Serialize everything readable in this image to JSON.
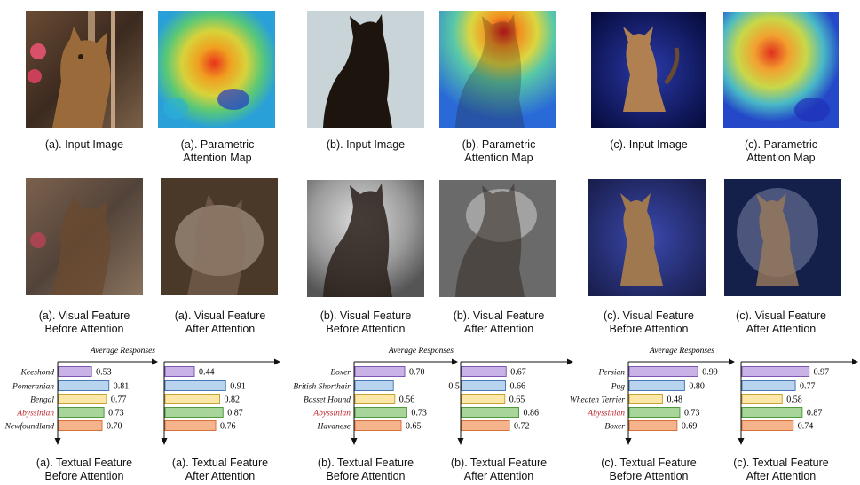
{
  "figure": {
    "columns": [
      {
        "input_caption": "(a). Input Image",
        "attn_caption": "(a). Parametric\nAttention Map",
        "vis_before_caption": "(a). Visual Feature\nBefore Attention",
        "vis_after_caption": "(a). Visual Feature\nAfter Attention",
        "txt_before_caption": "(a). Textual Feature\nBefore Attention",
        "txt_after_caption": "(a). Textual Feature\nAfter Attention"
      },
      {
        "input_caption": "(b). Input Image",
        "attn_caption": "(b). Parametric\nAttention Map",
        "vis_before_caption": "(b). Visual Feature\nBefore Attention",
        "vis_after_caption": "(b). Visual Feature\nAfter Attention",
        "txt_before_caption": "(b). Textual Feature\nBefore Attention",
        "txt_after_caption": "(b). Textual Feature\nAfter Attention"
      },
      {
        "input_caption": "(c). Input Image",
        "attn_caption": "(c). Parametric\nAttention Map",
        "vis_before_caption": "(c). Visual Feature\nBefore Attention",
        "vis_after_caption": "(c). Visual Feature\nAfter Attention",
        "txt_before_caption": "(c). Textual Feature\nBefore Attention",
        "txt_after_caption": "(c). Textual Feature\nAfter Attention"
      }
    ]
  },
  "chart_data": [
    {
      "type": "bar",
      "orientation": "horizontal",
      "annotation": "Average Responses",
      "categories": [
        "Keeshond",
        "Pomeranian",
        "Bengal",
        "Abyssinian",
        "Newfoundland"
      ],
      "highlight": "Abyssinian",
      "before": [
        0.53,
        0.81,
        0.77,
        0.73,
        0.7
      ],
      "after": [
        0.44,
        0.91,
        0.82,
        0.87,
        0.76
      ]
    },
    {
      "type": "bar",
      "orientation": "horizontal",
      "annotation": "Average Responses",
      "categories": [
        "Boxer",
        "British Shorthair",
        "Basset Hound",
        "Abyssinian",
        "Havanese"
      ],
      "highlight": "Abyssinian",
      "before": [
        0.7,
        0.54,
        0.56,
        0.73,
        0.65
      ],
      "after": [
        0.67,
        0.66,
        0.65,
        0.86,
        0.72
      ]
    },
    {
      "type": "bar",
      "orientation": "horizontal",
      "annotation": "Average Responses",
      "categories": [
        "Persian",
        "Pug",
        "Wheaten Terrier",
        "Abyssinian",
        "Boxer"
      ],
      "highlight": "Abyssinian",
      "before": [
        0.99,
        0.8,
        0.48,
        0.73,
        0.69
      ],
      "after": [
        0.97,
        0.77,
        0.58,
        0.87,
        0.74
      ]
    }
  ],
  "colors": {
    "bars": [
      "#c9b3e6",
      "#b9d4ef",
      "#fde7a8",
      "#a8d59a",
      "#f5b48c"
    ],
    "bar_strokes": [
      "#7d58b3",
      "#4a78b5",
      "#c7a334",
      "#4f9a3e",
      "#d8703c"
    ],
    "highlight_text": "#c0282d"
  }
}
